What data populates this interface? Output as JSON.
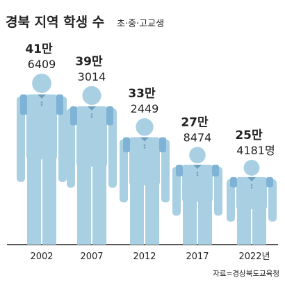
{
  "chart_data": {
    "type": "pictogram",
    "title": "경북 지역 학생 수",
    "subtitle": "초·중·고교생",
    "categories": [
      "2002",
      "2007",
      "2012",
      "2017",
      "2022년"
    ],
    "values": [
      416409,
      393014,
      332449,
      278474,
      254181
    ],
    "value_labels": [
      [
        "41만",
        "6409"
      ],
      [
        "39만",
        "3014"
      ],
      [
        "33만",
        "2449"
      ],
      [
        "27만",
        "8474"
      ],
      [
        "25만",
        "4181명"
      ]
    ],
    "color": "#a9cfe3",
    "source": "자료=경상북도교육청"
  }
}
